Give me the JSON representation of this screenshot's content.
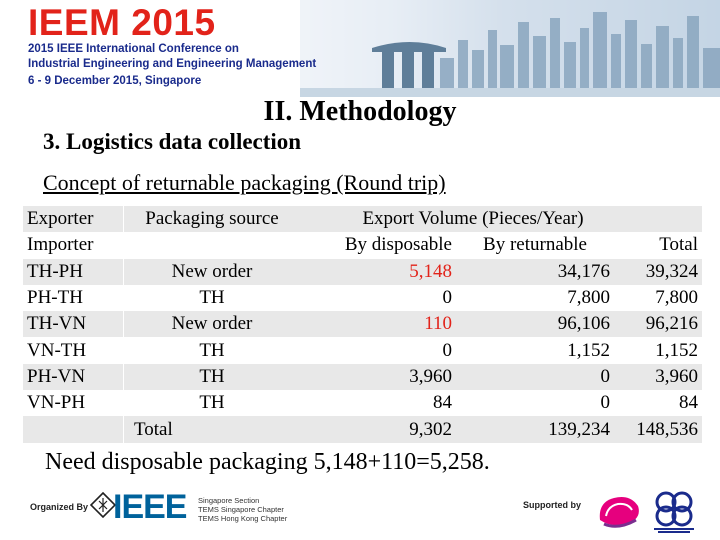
{
  "banner": {
    "title": "IEEM 2015",
    "line1": "2015 IEEE International Conference on",
    "line2": "Industrial Engineering and Engineering Management",
    "line3": "6 - 9 December 2015, Singapore"
  },
  "slide": {
    "heading": "II. Methodology",
    "subheading": "3. Logistics data collection",
    "concept": "Concept of returnable packaging (Round trip)",
    "note": "Need disposable packaging 5,148+110=5,258."
  },
  "table": {
    "header1": {
      "c0": "Exporter",
      "c1": "Packaging  source",
      "c2": "Export Volume (Pieces/Year)"
    },
    "header2": {
      "c0": "Importer",
      "c2": "By disposable",
      "c3": "By returnable",
      "c4": "Total"
    },
    "rows": [
      {
        "route": "TH-PH",
        "source": "New order",
        "disposable": "5,148",
        "returnable": "34,176",
        "total": "39,324"
      },
      {
        "route": "PH-TH",
        "source": "TH",
        "disposable": "0",
        "returnable": "7,800",
        "total": "7,800"
      },
      {
        "route": "TH-VN",
        "source": "New order",
        "disposable": "110",
        "returnable": "96,106",
        "total": "96,216"
      },
      {
        "route": "VN-TH",
        "source": "TH",
        "disposable": "0",
        "returnable": "1,152",
        "total": "1,152"
      },
      {
        "route": "PH-VN",
        "source": "TH",
        "disposable": "3,960",
        "returnable": "0",
        "total": "3,960"
      },
      {
        "route": "VN-PH",
        "source": "TH",
        "disposable": "84",
        "returnable": "0",
        "total": "84"
      }
    ],
    "total_row": {
      "label": "Total",
      "disposable": "9,302",
      "returnable": "139,234",
      "total": "148,536"
    },
    "highlight_color": "#e2231a"
  },
  "footer": {
    "organized_by": "Organized By",
    "ieee": "IEEE",
    "chapter1": "Singapore Section",
    "chapter2": "TEMS Singapore Chapter",
    "chapter3": "TEMS Hong Kong Chapter",
    "supported_by": "Supported by"
  }
}
